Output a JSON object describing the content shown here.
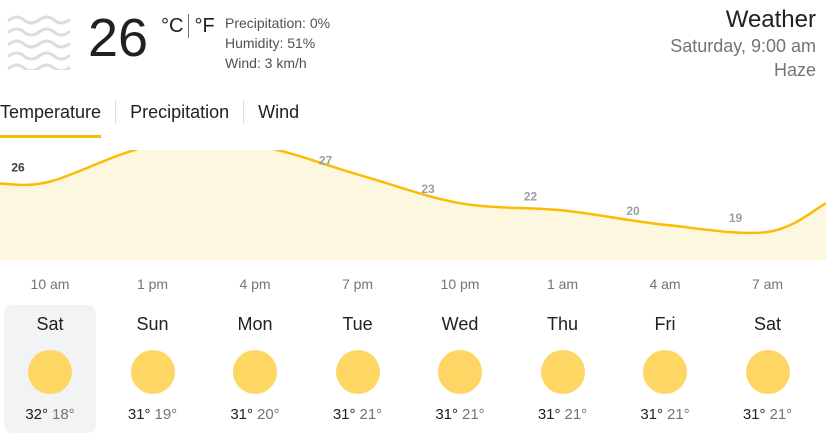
{
  "current": {
    "temperature": "26",
    "unit_c": "°C",
    "unit_f": "°F",
    "condition_icon": "haze-icon",
    "precipitation": "Precipitation: 0%",
    "humidity": "Humidity: 51%",
    "wind": "Wind: 3 km/h"
  },
  "header": {
    "title": "Weather",
    "datetime": "Saturday, 9:00 am",
    "condition": "Haze"
  },
  "tabs": [
    {
      "label": "Temperature",
      "active": true
    },
    {
      "label": "Precipitation",
      "active": false
    },
    {
      "label": "Wind",
      "active": false
    }
  ],
  "chart_data": {
    "type": "area",
    "x": [
      "10 am",
      "1 pm",
      "4 pm",
      "7 pm",
      "10 pm",
      "1 am",
      "4 am",
      "7 am"
    ],
    "values": [
      26,
      31,
      31,
      27,
      23,
      22,
      20,
      19
    ],
    "color": "#fbbc04",
    "fill": "#fef7e0"
  },
  "forecast": [
    {
      "day": "Sat",
      "high": "32°",
      "low": "18°",
      "icon": "sun-icon",
      "selected": true
    },
    {
      "day": "Sun",
      "high": "31°",
      "low": "19°",
      "icon": "sun-icon",
      "selected": false
    },
    {
      "day": "Mon",
      "high": "31°",
      "low": "20°",
      "icon": "sun-icon",
      "selected": false
    },
    {
      "day": "Tue",
      "high": "31°",
      "low": "21°",
      "icon": "sun-icon",
      "selected": false
    },
    {
      "day": "Wed",
      "high": "31°",
      "low": "21°",
      "icon": "sun-icon",
      "selected": false
    },
    {
      "day": "Thu",
      "high": "31°",
      "low": "21°",
      "icon": "sun-icon",
      "selected": false
    },
    {
      "day": "Fri",
      "high": "31°",
      "low": "21°",
      "icon": "sun-icon",
      "selected": false
    },
    {
      "day": "Sat",
      "high": "31°",
      "low": "21°",
      "icon": "sun-icon",
      "selected": false
    }
  ]
}
